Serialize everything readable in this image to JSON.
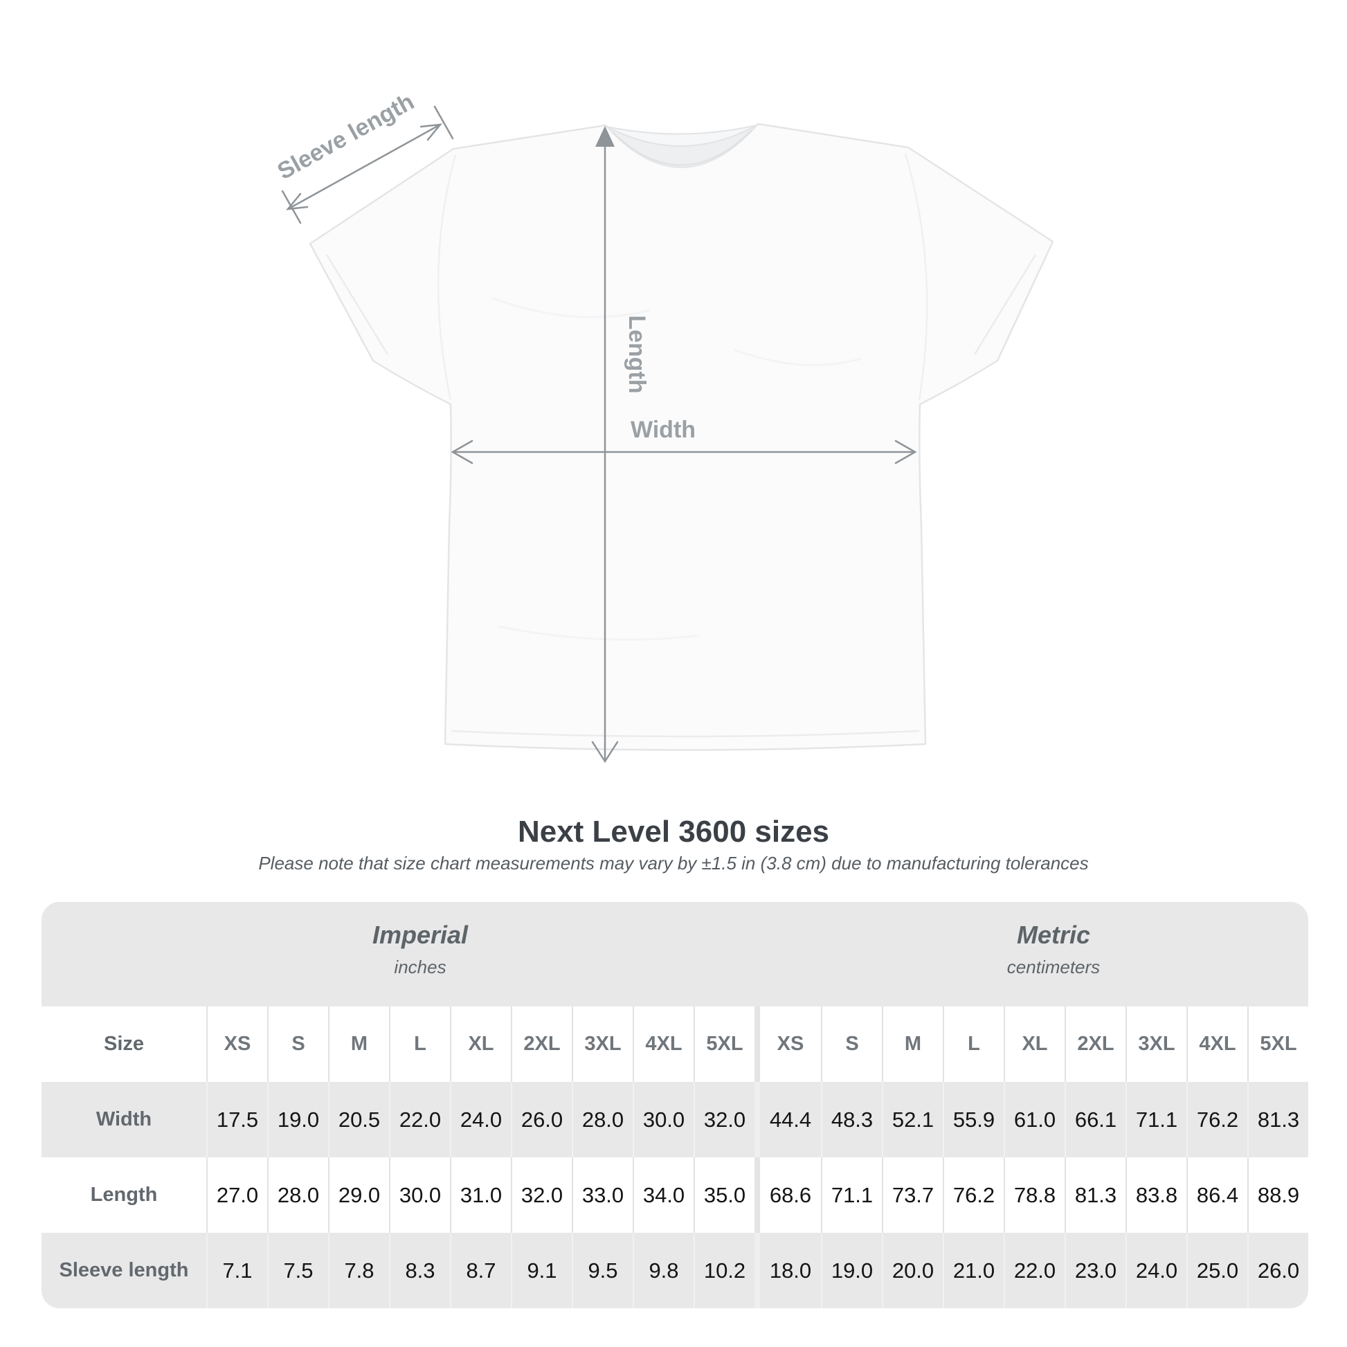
{
  "title": "Next Level 3600 sizes",
  "subtitle": "Please note that size chart measurements may vary by ±1.5 in (3.8 cm) due to manufacturing tolerances",
  "diagram": {
    "sleeve_length_label": "Sleeve length",
    "length_label": "Length",
    "width_label": "Width"
  },
  "table": {
    "groups": [
      {
        "label": "Imperial",
        "sublabel": "inches"
      },
      {
        "label": "Metric",
        "sublabel": "centimeters"
      }
    ],
    "size_label": "Size",
    "sizes": [
      "XS",
      "S",
      "M",
      "L",
      "XL",
      "2XL",
      "3XL",
      "4XL",
      "5XL"
    ],
    "rows": [
      {
        "label": "Width",
        "imperial": [
          "17.5",
          "19.0",
          "20.5",
          "22.0",
          "24.0",
          "26.0",
          "28.0",
          "30.0",
          "32.0"
        ],
        "metric": [
          "44.4",
          "48.3",
          "52.1",
          "55.9",
          "61.0",
          "66.1",
          "71.1",
          "76.2",
          "81.3"
        ]
      },
      {
        "label": "Length",
        "imperial": [
          "27.0",
          "28.0",
          "29.0",
          "30.0",
          "31.0",
          "32.0",
          "33.0",
          "34.0",
          "35.0"
        ],
        "metric": [
          "68.6",
          "71.1",
          "73.7",
          "76.2",
          "78.8",
          "81.3",
          "83.8",
          "86.4",
          "88.9"
        ]
      },
      {
        "label": "Sleeve length",
        "imperial": [
          "7.1",
          "7.5",
          "7.8",
          "8.3",
          "8.7",
          "9.1",
          "9.5",
          "9.8",
          "10.2"
        ],
        "metric": [
          "18.0",
          "19.0",
          "20.0",
          "21.0",
          "22.0",
          "23.0",
          "24.0",
          "25.0",
          "26.0"
        ]
      }
    ]
  },
  "chart_data": {
    "type": "table",
    "title": "Next Level 3600 sizes",
    "note": "Measurements may vary by ±1.5 in (3.8 cm) due to manufacturing tolerances",
    "unit_groups": [
      "Imperial (inches)",
      "Metric (centimeters)"
    ],
    "columns": [
      "XS",
      "S",
      "M",
      "L",
      "XL",
      "2XL",
      "3XL",
      "4XL",
      "5XL"
    ],
    "rows": [
      {
        "measure": "Width",
        "imperial_in": [
          17.5,
          19.0,
          20.5,
          22.0,
          24.0,
          26.0,
          28.0,
          30.0,
          32.0
        ],
        "metric_cm": [
          44.4,
          48.3,
          52.1,
          55.9,
          61.0,
          66.1,
          71.1,
          76.2,
          81.3
        ]
      },
      {
        "measure": "Length",
        "imperial_in": [
          27.0,
          28.0,
          29.0,
          30.0,
          31.0,
          32.0,
          33.0,
          34.0,
          35.0
        ],
        "metric_cm": [
          68.6,
          71.1,
          73.7,
          76.2,
          78.8,
          81.3,
          83.8,
          86.4,
          88.9
        ]
      },
      {
        "measure": "Sleeve length",
        "imperial_in": [
          7.1,
          7.5,
          7.8,
          8.3,
          8.7,
          9.1,
          9.5,
          9.8,
          10.2
        ],
        "metric_cm": [
          18.0,
          19.0,
          20.0,
          21.0,
          22.0,
          23.0,
          24.0,
          25.0,
          26.0
        ]
      }
    ]
  },
  "colors": {
    "band_gray": "#e8e8e9",
    "annotation_gray": "#9aa0a4",
    "value_text": "#141414",
    "title_text": "#3b4046"
  }
}
